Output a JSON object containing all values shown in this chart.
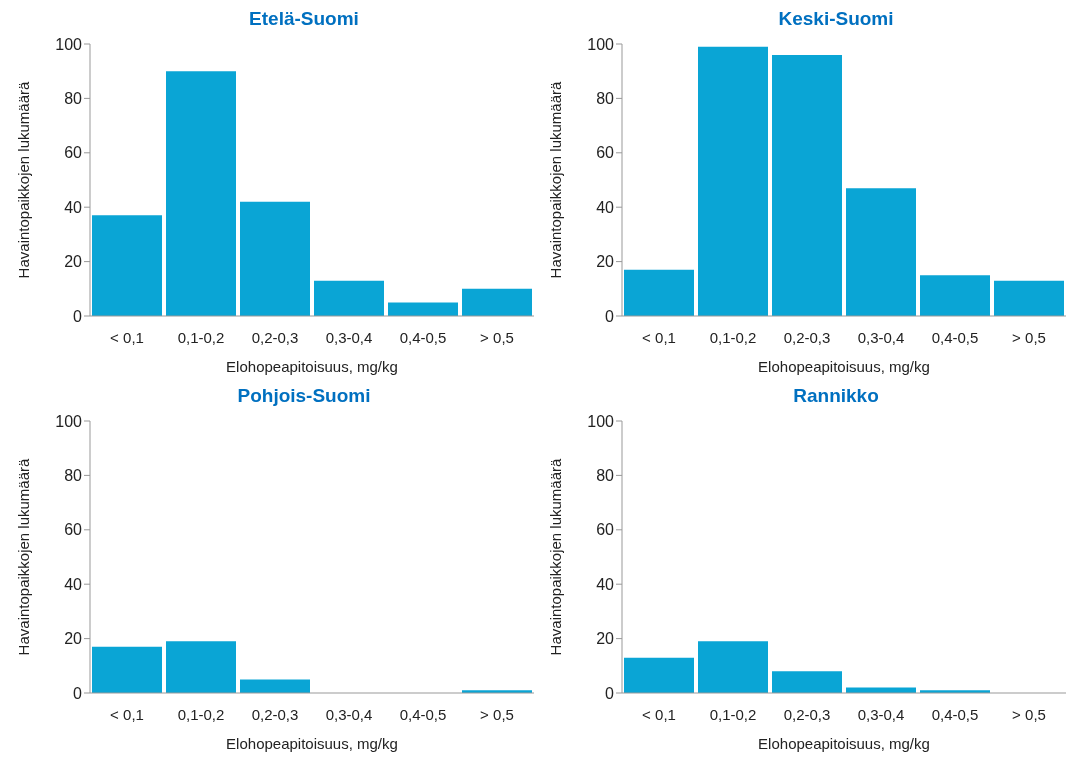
{
  "chart_data": [
    {
      "type": "bar",
      "title": "Etelä-Suomi",
      "xlabel": "Elohopeapitoisuus, mg/kg",
      "ylabel": "Havaintopaikkojen lukumäärä",
      "categories": [
        "< 0,1",
        "0,1-0,2",
        "0,2-0,3",
        "0,3-0,4",
        "0,4-0,5",
        "> 0,5"
      ],
      "values": [
        37,
        90,
        42,
        13,
        5,
        10
      ],
      "color": "#0aa5d5",
      "ylim": [
        0,
        100
      ],
      "yticks": [
        0,
        20,
        40,
        60,
        80,
        100
      ],
      "grid": false,
      "legend": false
    },
    {
      "type": "bar",
      "title": "Keski-Suomi",
      "xlabel": "Elohopeapitoisuus, mg/kg",
      "ylabel": "Havaintopaikkojen lukumäärä",
      "categories": [
        "< 0,1",
        "0,1-0,2",
        "0,2-0,3",
        "0,3-0,4",
        "0,4-0,5",
        "> 0,5"
      ],
      "values": [
        17,
        99,
        96,
        47,
        15,
        13
      ],
      "color": "#0aa5d5",
      "ylim": [
        0,
        100
      ],
      "yticks": [
        0,
        20,
        40,
        60,
        80,
        100
      ],
      "grid": false,
      "legend": false
    },
    {
      "type": "bar",
      "title": "Pohjois-Suomi",
      "xlabel": "Elohopeapitoisuus, mg/kg",
      "ylabel": "Havaintopaikkojen lukumäärä",
      "categories": [
        "< 0,1",
        "0,1-0,2",
        "0,2-0,3",
        "0,3-0,4",
        "0,4-0,5",
        "> 0,5"
      ],
      "values": [
        17,
        19,
        5,
        0,
        0,
        1
      ],
      "color": "#0aa5d5",
      "ylim": [
        0,
        100
      ],
      "yticks": [
        0,
        20,
        40,
        60,
        80,
        100
      ],
      "grid": false,
      "legend": false
    },
    {
      "type": "bar",
      "title": "Rannikko",
      "xlabel": "Elohopeapitoisuus, mg/kg",
      "ylabel": "Havaintopaikkojen lukumäärä",
      "categories": [
        "< 0,1",
        "0,1-0,2",
        "0,2-0,3",
        "0,3-0,4",
        "0,4-0,5",
        "> 0,5"
      ],
      "values": [
        13,
        19,
        8,
        2,
        1,
        0
      ],
      "color": "#0aa5d5",
      "ylim": [
        0,
        100
      ],
      "yticks": [
        0,
        20,
        40,
        60,
        80,
        100
      ],
      "grid": false,
      "legend": false
    }
  ]
}
